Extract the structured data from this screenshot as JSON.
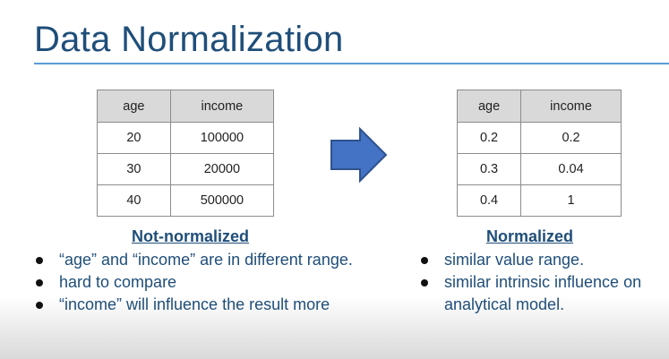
{
  "slide": {
    "title": "Data Normalization"
  },
  "left": {
    "table": {
      "headers": [
        "age",
        "income"
      ],
      "rows": [
        [
          "20",
          "100000"
        ],
        [
          "30",
          "20000"
        ],
        [
          "40",
          "500000"
        ]
      ]
    },
    "heading": "Not-normalized",
    "bullets": [
      "“age” and “income” are in different range.",
      "hard to compare",
      "“income” will influence the result more"
    ]
  },
  "right": {
    "table": {
      "headers": [
        "age",
        "income"
      ],
      "rows": [
        [
          "0.2",
          "0.2"
        ],
        [
          "0.3",
          "0.04"
        ],
        [
          "0.4",
          "1"
        ]
      ]
    },
    "heading": "Normalized",
    "bullets": [
      "similar value range.",
      "similar intrinsic influence on analytical model."
    ]
  },
  "colors": {
    "title": "#1f4e79",
    "arrow": "#4472c4",
    "header_fill": "#d9d9d9"
  },
  "icons": {
    "arrow": "right-arrow-icon"
  }
}
